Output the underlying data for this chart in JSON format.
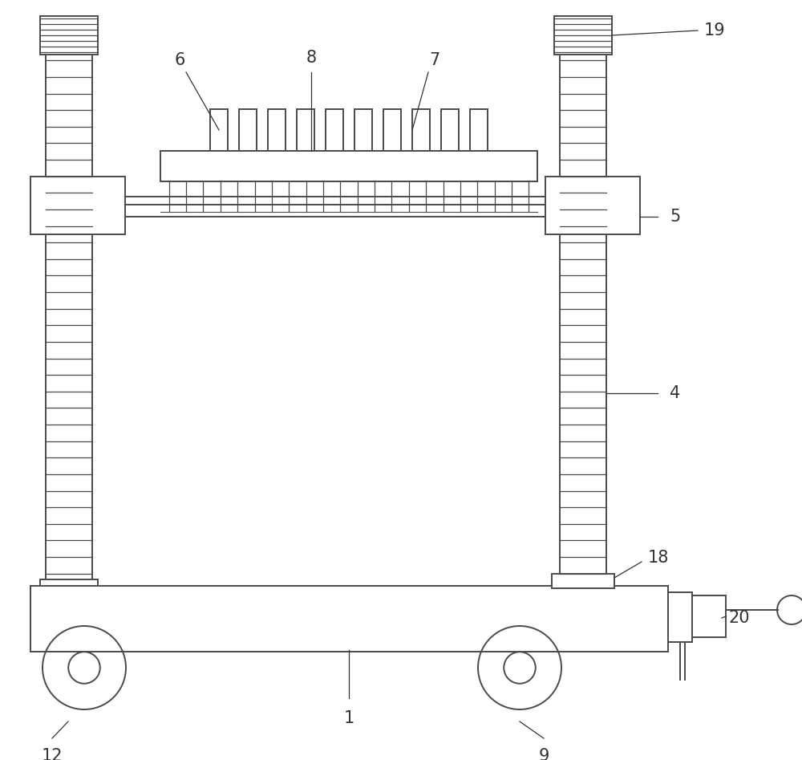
{
  "bg_color": "#ffffff",
  "line_color": "#4a4a4a",
  "line_width": 1.4,
  "fig_w": 10.0,
  "fig_h": 9.47,
  "dpi": 100,
  "font_size": 15,
  "label_color": "#333333"
}
